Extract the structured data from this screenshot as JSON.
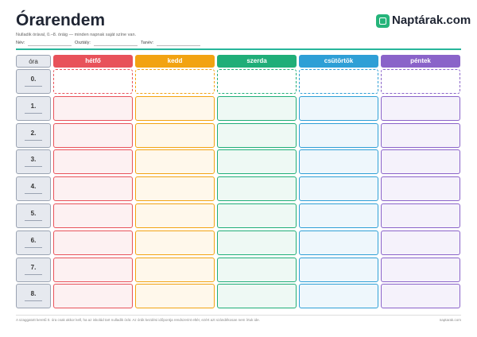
{
  "header": {
    "title": "Órarendem",
    "subtitle": "Nulladik órával, 0.–8. óráig — minden napnak saját színe van.",
    "logo": "Naptárak.com",
    "fields": [
      "Név:",
      "Osztály:",
      "Tanév:"
    ]
  },
  "table": {
    "corner": "óra",
    "days": [
      "hétfő",
      "kedd",
      "szerda",
      "csütörtök",
      "péntek"
    ],
    "periods": [
      "0.",
      "1.",
      "2.",
      "3.",
      "4.",
      "5.",
      "6.",
      "7.",
      "8."
    ]
  },
  "footer": {
    "note": "A szaggatott keretű 0. óra csak akkor kell, ha az iskolád tart nulladik órát. Az órák kezdési időpontja rendszerint eltér, ezért azt szándékosan nem írtuk ide.",
    "site": "naptarak.com"
  }
}
